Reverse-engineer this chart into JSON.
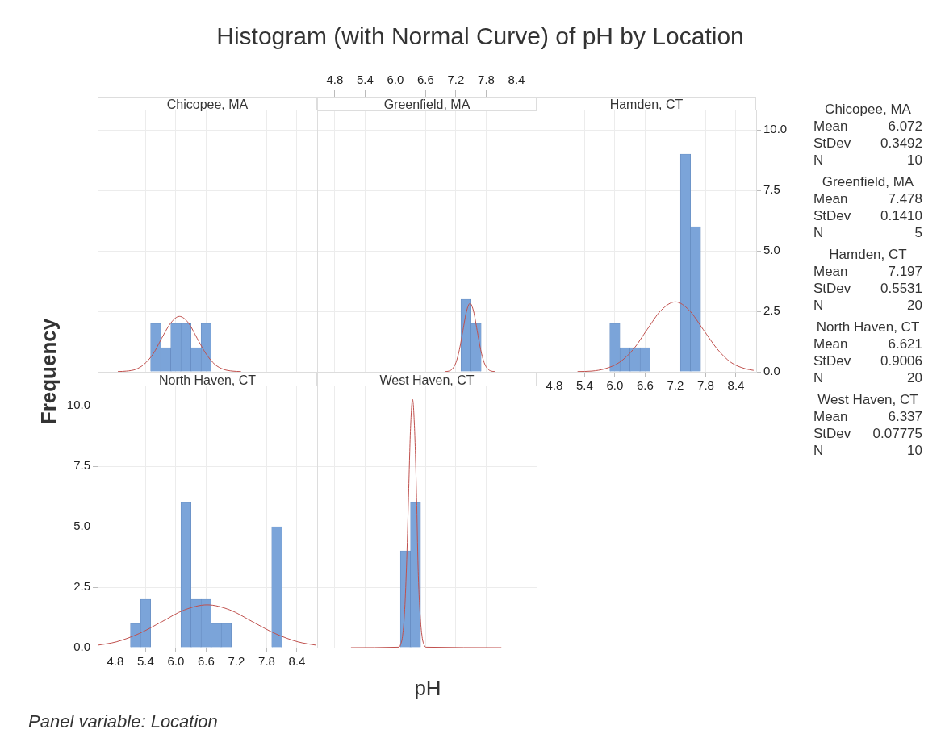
{
  "chart_data": [
    {
      "type": "histogram",
      "title": "Chicopee, MA",
      "xlim": [
        4.45,
        8.8
      ],
      "ylim": [
        0,
        10.8
      ],
      "xticks": [
        4.8,
        5.4,
        6,
        6.6,
        7.2,
        7.8,
        8.4
      ],
      "yticks": [
        0,
        2.5,
        5,
        7.5,
        10
      ],
      "grid": true,
      "tick_labels": false,
      "series": [
        {
          "type": "histogram",
          "color": "#7ba4d9",
          "bins": [
            5.5,
            5.7,
            5.9,
            6.1,
            6.3,
            6.5,
            6.7
          ],
          "values": [
            2,
            1,
            2,
            2,
            1,
            2
          ]
        },
        {
          "type": "line",
          "color": "#c0504d",
          "x": [
            4.85,
            5.02,
            5.2,
            5.37,
            5.55,
            5.72,
            5.9,
            6.07,
            6.25,
            6.42,
            6.6,
            6.77,
            6.95,
            7.12,
            7.29
          ],
          "values": [
            0.01,
            0.03,
            0.1,
            0.31,
            0.74,
            1.39,
            2.02,
            2.29,
            2.02,
            1.39,
            0.74,
            0.31,
            0.1,
            0.03,
            0.01
          ]
        }
      ]
    },
    {
      "type": "histogram",
      "title": "Greenfield, MA",
      "xlim": [
        4.45,
        8.8
      ],
      "ylim": [
        0,
        10.8
      ],
      "x2lim": [
        4.45,
        8.8
      ],
      "x2ticks": [
        4.8,
        5.4,
        {
          "value": 6,
          "label": "6.0"
        },
        6.6,
        7.2,
        7.8,
        8.4
      ],
      "yticks": [
        0,
        2.5,
        5,
        7.5,
        10
      ],
      "grid": true,
      "tick_labels": "x",
      "series": [
        {
          "type": "histogram",
          "color": "#7ba4d9",
          "bins": [
            7.3,
            7.5,
            7.7
          ],
          "values": [
            3,
            2
          ]
        },
        {
          "type": "line",
          "color": "#c0504d",
          "x": [
            6.99,
            7.06,
            7.13,
            7.2,
            7.27,
            7.34,
            7.41,
            7.48,
            7.55,
            7.62,
            7.69,
            7.76,
            7.83,
            7.9,
            7.97
          ],
          "values": [
            0.01,
            0.03,
            0.12,
            0.38,
            0.92,
            1.72,
            2.5,
            2.83,
            2.5,
            1.72,
            0.92,
            0.38,
            0.12,
            0.03,
            0.01
          ]
        }
      ]
    },
    {
      "type": "histogram",
      "title": "Hamden, CT",
      "xlim": [
        4.45,
        8.8
      ],
      "y2lim": [
        0,
        10.8
      ],
      "xticks": [
        4.8,
        5.4,
        {
          "value": 6,
          "label": "6.0"
        },
        6.6,
        7.2,
        7.8,
        8.4
      ],
      "y2ticks": [
        {
          "value": 0,
          "label": "0.0"
        },
        2.5,
        {
          "value": 5,
          "label": "5.0"
        },
        7.5,
        {
          "value": 10,
          "label": "10.0"
        }
      ],
      "grid": true,
      "series": [
        {
          "type": "histogram",
          "axis": "y2",
          "color": "#7ba4d9",
          "bins": [
            5.9,
            6.1,
            6.3,
            6.5,
            6.7,
            6.9,
            7.1,
            7.3,
            7.5,
            7.7
          ],
          "values": [
            2,
            1,
            1,
            1,
            0,
            0,
            0,
            9,
            6
          ]
        },
        {
          "type": "line",
          "axis": "y2",
          "color": "#c0504d",
          "x": [
            5.26,
            5.54,
            5.81,
            6.09,
            6.37,
            6.64,
            6.92,
            7.2,
            7.47,
            7.75,
            8.03,
            8.3,
            8.58,
            8.75
          ],
          "values": [
            0.01,
            0.03,
            0.13,
            0.39,
            0.94,
            1.75,
            2.55,
            2.89,
            2.55,
            1.75,
            0.94,
            0.39,
            0.13,
            0.06
          ]
        }
      ]
    },
    {
      "type": "histogram",
      "title": "North Haven, CT",
      "xlim": [
        4.45,
        8.8
      ],
      "ylim": [
        0,
        10.8
      ],
      "xticks": [
        4.8,
        5.4,
        {
          "value": 6,
          "label": "6.0"
        },
        6.6,
        7.2,
        7.8,
        8.4
      ],
      "yticks": [
        {
          "value": 0,
          "label": "0.0"
        },
        2.5,
        {
          "value": 5,
          "label": "5.0"
        },
        7.5,
        {
          "value": 10,
          "label": "10.0"
        }
      ],
      "grid": true,
      "series": [
        {
          "type": "histogram",
          "color": "#7ba4d9",
          "bins": [
            5.1,
            5.3,
            5.5,
            5.7,
            5.9,
            6.1,
            6.3,
            6.5,
            6.7,
            6.9,
            7.1,
            7.3,
            7.5,
            7.7,
            7.9,
            8.1
          ],
          "values": [
            1,
            2,
            0,
            0,
            0,
            6,
            2,
            2,
            1,
            1,
            0,
            0,
            0,
            0,
            5
          ]
        },
        {
          "type": "line",
          "color": "#c0504d",
          "x": [
            4.45,
            4.82,
            5.27,
            5.72,
            6.17,
            6.62,
            7.07,
            7.52,
            7.97,
            8.42,
            8.78
          ],
          "values": [
            0.1,
            0.24,
            0.58,
            1.07,
            1.56,
            1.77,
            1.56,
            1.07,
            0.58,
            0.24,
            0.1
          ]
        }
      ]
    },
    {
      "type": "histogram",
      "title": "West Haven, CT",
      "xlim": [
        4.45,
        8.8
      ],
      "ylim": [
        0,
        10.8
      ],
      "xticks": [
        4.8,
        5.4,
        6,
        6.6,
        7.2,
        7.8,
        8.4
      ],
      "yticks": [
        0,
        2.5,
        5,
        7.5,
        10
      ],
      "grid": true,
      "tick_labels": false,
      "series": [
        {
          "type": "histogram",
          "color": "#7ba4d9",
          "bins": [
            6.1,
            6.3,
            6.5
          ],
          "values": [
            4,
            6
          ]
        },
        {
          "type": "line",
          "color": "#c0504d",
          "x": [
            5.12,
            6.07,
            6.1,
            6.14,
            6.18,
            6.22,
            6.26,
            6.3,
            6.34,
            6.38,
            6.42,
            6.45,
            6.49,
            6.53,
            6.57,
            6.61,
            8.1
          ],
          "values": [
            0,
            0.02,
            0.11,
            0.45,
            1.39,
            3.33,
            6.22,
            9.05,
            10.26,
            9.05,
            6.22,
            3.33,
            1.39,
            0.45,
            0.11,
            0.02,
            0
          ]
        }
      ]
    },
    {
      "type": "other",
      "title": "Histogram (with Normal Curve) of pH by Location",
      "xlabel": "pH",
      "ylabel": "Frequency",
      "annotations": [
        "Chicopee, MA",
        "Mean 6.072",
        "StDev 0.3492",
        "N 10",
        "Greenfield, MA",
        "Mean 7.478",
        "StDev 0.1410",
        "N 5",
        "Hamden, CT",
        "Mean 7.197",
        "StDev 0.5531",
        "N 20",
        "North Haven, CT",
        "Mean 6.621",
        "StDev 0.9006",
        "N 20",
        "West Haven, CT",
        "Mean 6.337",
        "StDev 0.07775",
        "N 10",
        "Panel variable: Location"
      ]
    }
  ]
}
